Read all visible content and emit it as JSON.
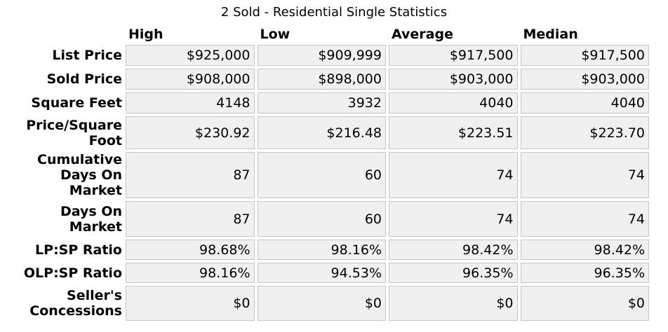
{
  "title": "2 Sold - Residential Single Statistics",
  "chart_data": {
    "type": "table",
    "title": "2 Sold - Residential Single Statistics",
    "columns": [
      "High",
      "Low",
      "Average",
      "Median"
    ],
    "rows": [
      {
        "label": "List Price",
        "values": [
          "$925,000",
          "$909,999",
          "$917,500",
          "$917,500"
        ]
      },
      {
        "label": "Sold Price",
        "values": [
          "$908,000",
          "$898,000",
          "$903,000",
          "$903,000"
        ]
      },
      {
        "label": "Square Feet",
        "values": [
          "4148",
          "3932",
          "4040",
          "4040"
        ]
      },
      {
        "label": "Price/Square\nFoot",
        "values": [
          "$230.92",
          "$216.48",
          "$223.51",
          "$223.70"
        ]
      },
      {
        "label": "Cumulative\nDays On\nMarket",
        "values": [
          "87",
          "60",
          "74",
          "74"
        ]
      },
      {
        "label": "Days On\nMarket",
        "values": [
          "87",
          "60",
          "74",
          "74"
        ]
      },
      {
        "label": "LP:SP Ratio",
        "values": [
          "98.68%",
          "98.16%",
          "98.42%",
          "98.42%"
        ]
      },
      {
        "label": "OLP:SP Ratio",
        "values": [
          "98.16%",
          "94.53%",
          "96.35%",
          "96.35%"
        ]
      },
      {
        "label": "Seller's\nConcessions",
        "values": [
          "$0",
          "$0",
          "$0",
          "$0"
        ]
      }
    ]
  },
  "colors": {
    "cell_background": "#f0f0f0",
    "cell_border": "#c6c6c6",
    "text": "#000000",
    "page_background": "#ffffff"
  }
}
